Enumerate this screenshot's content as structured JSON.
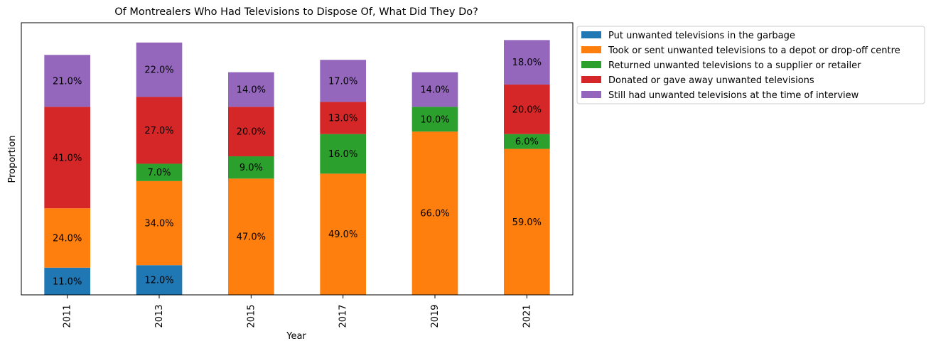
{
  "chart_data": {
    "type": "bar",
    "stacked": true,
    "title": "Of Montrealers Who Had Televisions to Dispose Of, What Did They Do?",
    "xlabel": "Year",
    "ylabel": "Proportion",
    "categories": [
      "2011",
      "2013",
      "2015",
      "2017",
      "2019",
      "2021"
    ],
    "series": [
      {
        "name": "Put unwanted televisions in the garbage",
        "color": "#1f77b4",
        "values": [
          11.0,
          12.0,
          0,
          0,
          0,
          0
        ]
      },
      {
        "name": "Took or sent unwanted televisions to a depot or drop-off centre",
        "color": "#ff7f0e",
        "values": [
          24.0,
          34.0,
          47.0,
          49.0,
          66.0,
          59.0
        ]
      },
      {
        "name": "Returned unwanted televisions to a supplier or retailer",
        "color": "#2ca02c",
        "values": [
          0,
          7.0,
          9.0,
          16.0,
          10.0,
          6.0
        ]
      },
      {
        "name": "Donated or gave away unwanted televisions",
        "color": "#d62728",
        "values": [
          41.0,
          27.0,
          20.0,
          13.0,
          0,
          20.0
        ]
      },
      {
        "name": "Still had unwanted televisions at the time of interview",
        "color": "#9467bd",
        "values": [
          21.0,
          22.0,
          14.0,
          17.0,
          14.0,
          18.0
        ]
      }
    ],
    "ylim": [
      0,
      110
    ],
    "yticks_visible": false,
    "grid": false,
    "legend_position": "outside-top-right",
    "value_label_format": "{v}%"
  }
}
